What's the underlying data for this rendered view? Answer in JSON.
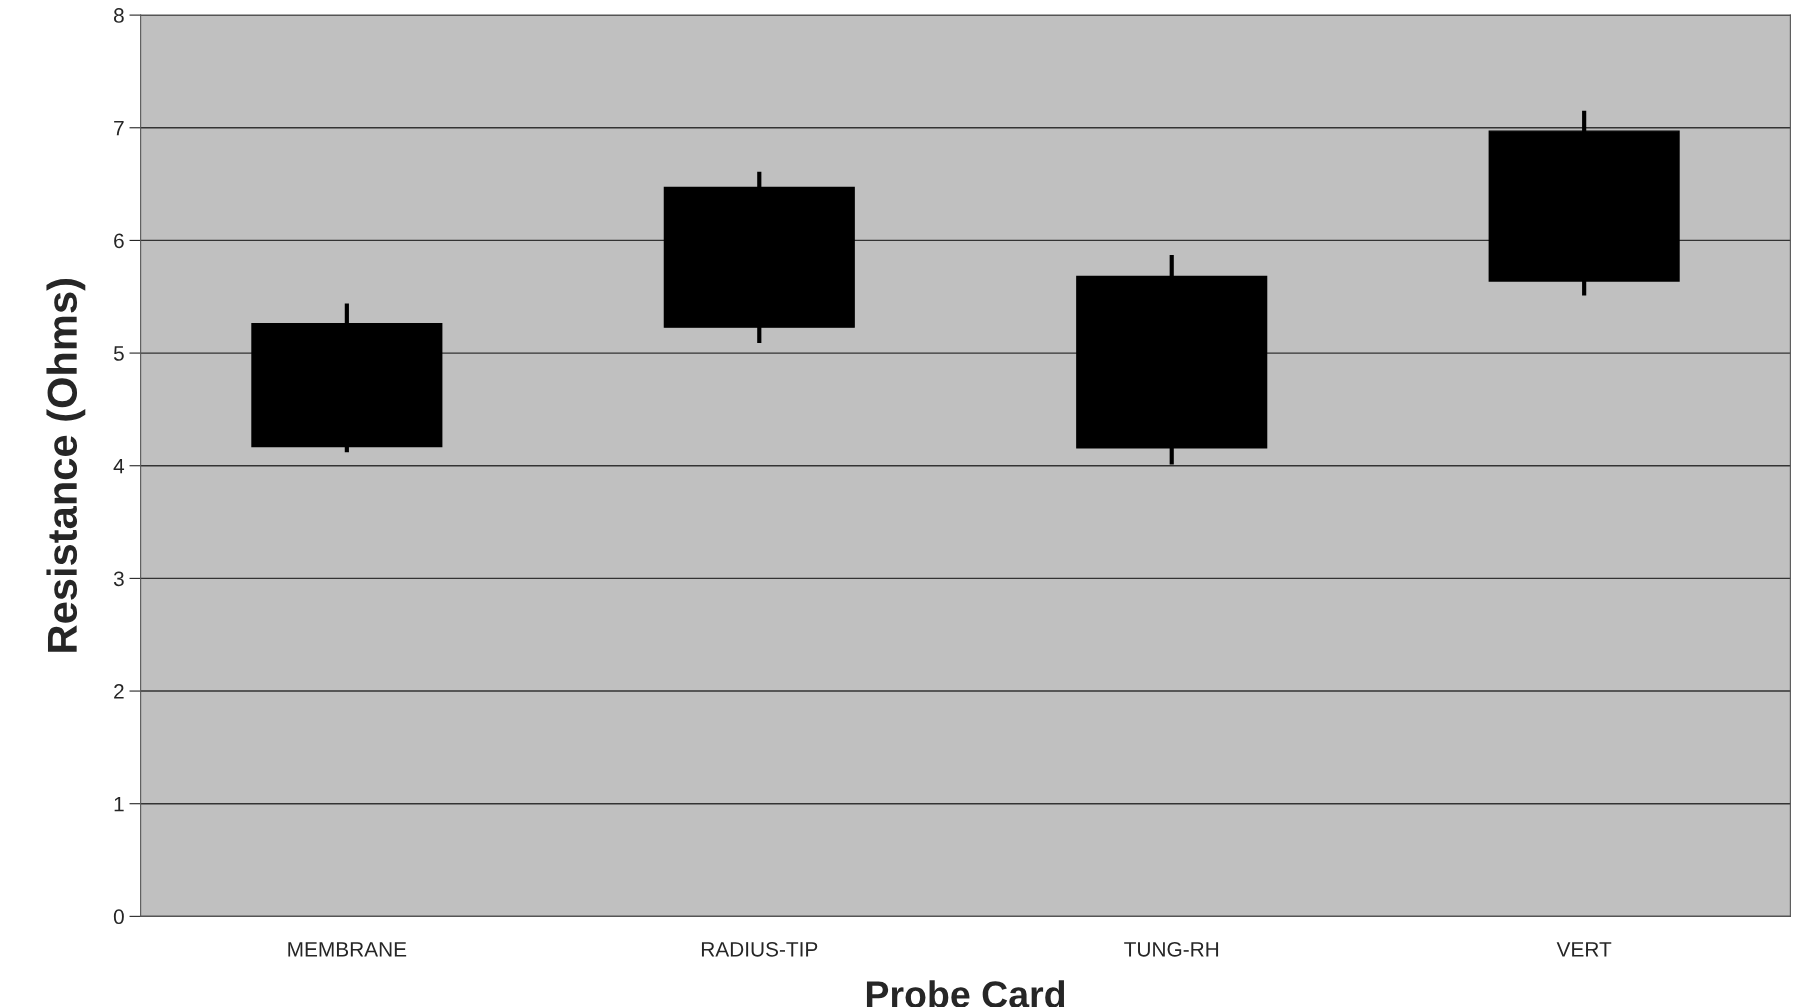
{
  "chart_data": {
    "type": "candlestick",
    "xlabel": "Probe Card",
    "ylabel": "Resistance (Ohms)",
    "categories": [
      "MEMBRANE",
      "RADIUS-TIP",
      "TUNG-RH",
      "VERT"
    ],
    "ohlc": [
      [
        5.26,
        5.44,
        4.12,
        4.17
      ],
      [
        6.47,
        6.61,
        5.09,
        5.23
      ],
      [
        5.68,
        5.87,
        4.01,
        4.16
      ],
      [
        6.97,
        7.15,
        5.51,
        5.64
      ]
    ],
    "color": "#000000",
    "ylim": [
      0,
      8
    ],
    "yticks": [
      0,
      1,
      2,
      3,
      4,
      5,
      6,
      7,
      8
    ],
    "grid": "y"
  }
}
